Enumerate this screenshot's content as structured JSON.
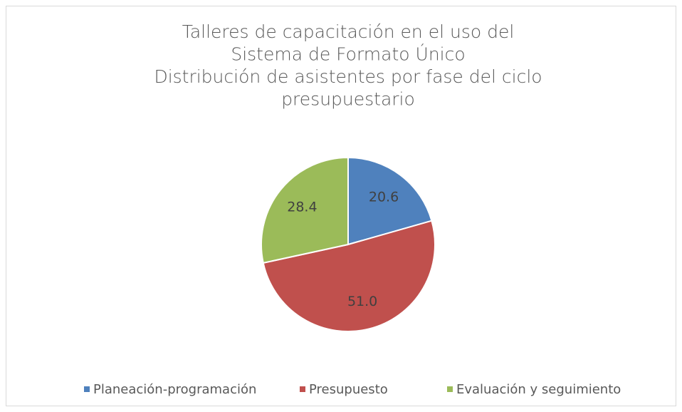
{
  "chart_data": {
    "type": "pie",
    "title": [
      "Talleres de capacitación en el uso del",
      "Sistema de Formato Único",
      "Distribución de asistentes por fase del ciclo",
      "presupuestario"
    ],
    "categories": [
      "Planeación-programación",
      "Presupuesto",
      "Evaluación y seguimiento"
    ],
    "values": [
      20.6,
      51.0,
      28.4
    ],
    "value_labels": [
      "20.6",
      "51.0",
      "28.4"
    ],
    "colors": [
      "#4f81bd",
      "#c0504d",
      "#9bbb59"
    ],
    "legend": "bottom"
  }
}
